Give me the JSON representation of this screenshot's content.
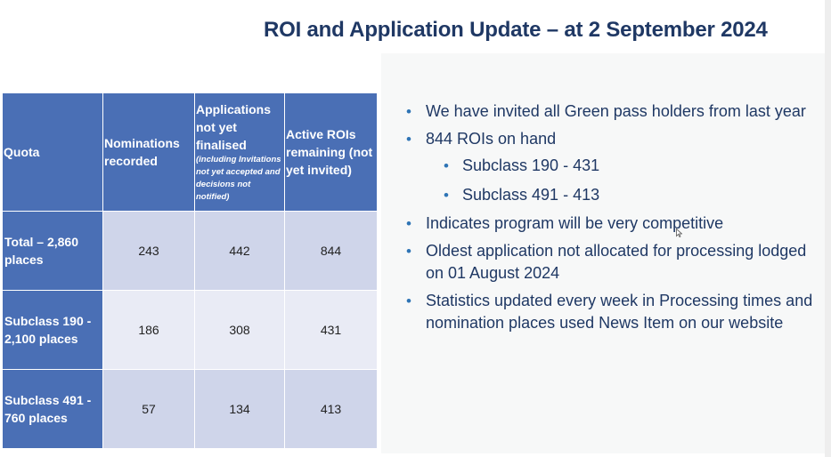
{
  "slide": {
    "title": "ROI and Application Update –  at 2 September 2024"
  },
  "table": {
    "headers": {
      "quota": "Quota",
      "nominations": "Nominations recorded",
      "applications": "Applications not yet finalised",
      "applications_note": "(including Invitations not yet accepted and decisions not notified)",
      "active_rois": "Active ROIs remaining (not yet invited)"
    },
    "rows": [
      {
        "label": "Total – 2,860 places",
        "nominations": "243",
        "applications": "442",
        "active_rois": "844"
      },
      {
        "label": "Subclass 190 - 2,100 places",
        "nominations": "186",
        "applications": "308",
        "active_rois": "431"
      },
      {
        "label": "Subclass 491 - 760 places",
        "nominations": "57",
        "applications": "134",
        "active_rois": "413"
      }
    ]
  },
  "bullets": [
    "We have invited all Green pass holders from last year",
    "844 ROIs on hand",
    "Subclass 190 - 431",
    "Subclass 491 - 413",
    "Indicates program will be very competitive",
    "Oldest application not allocated for processing lodged on 01 August 2024",
    "Statistics updated every week in Processing times and nomination places used News Item on our website"
  ],
  "colors": {
    "title": "#1f3864",
    "header_fill": "#4a6fb5",
    "row_fill_dark": "#cfd5ea",
    "row_fill_light": "#e9ebf5",
    "bullet": "#2e74b5"
  },
  "icons": {
    "cursor": "mouse-pointer-icon"
  }
}
